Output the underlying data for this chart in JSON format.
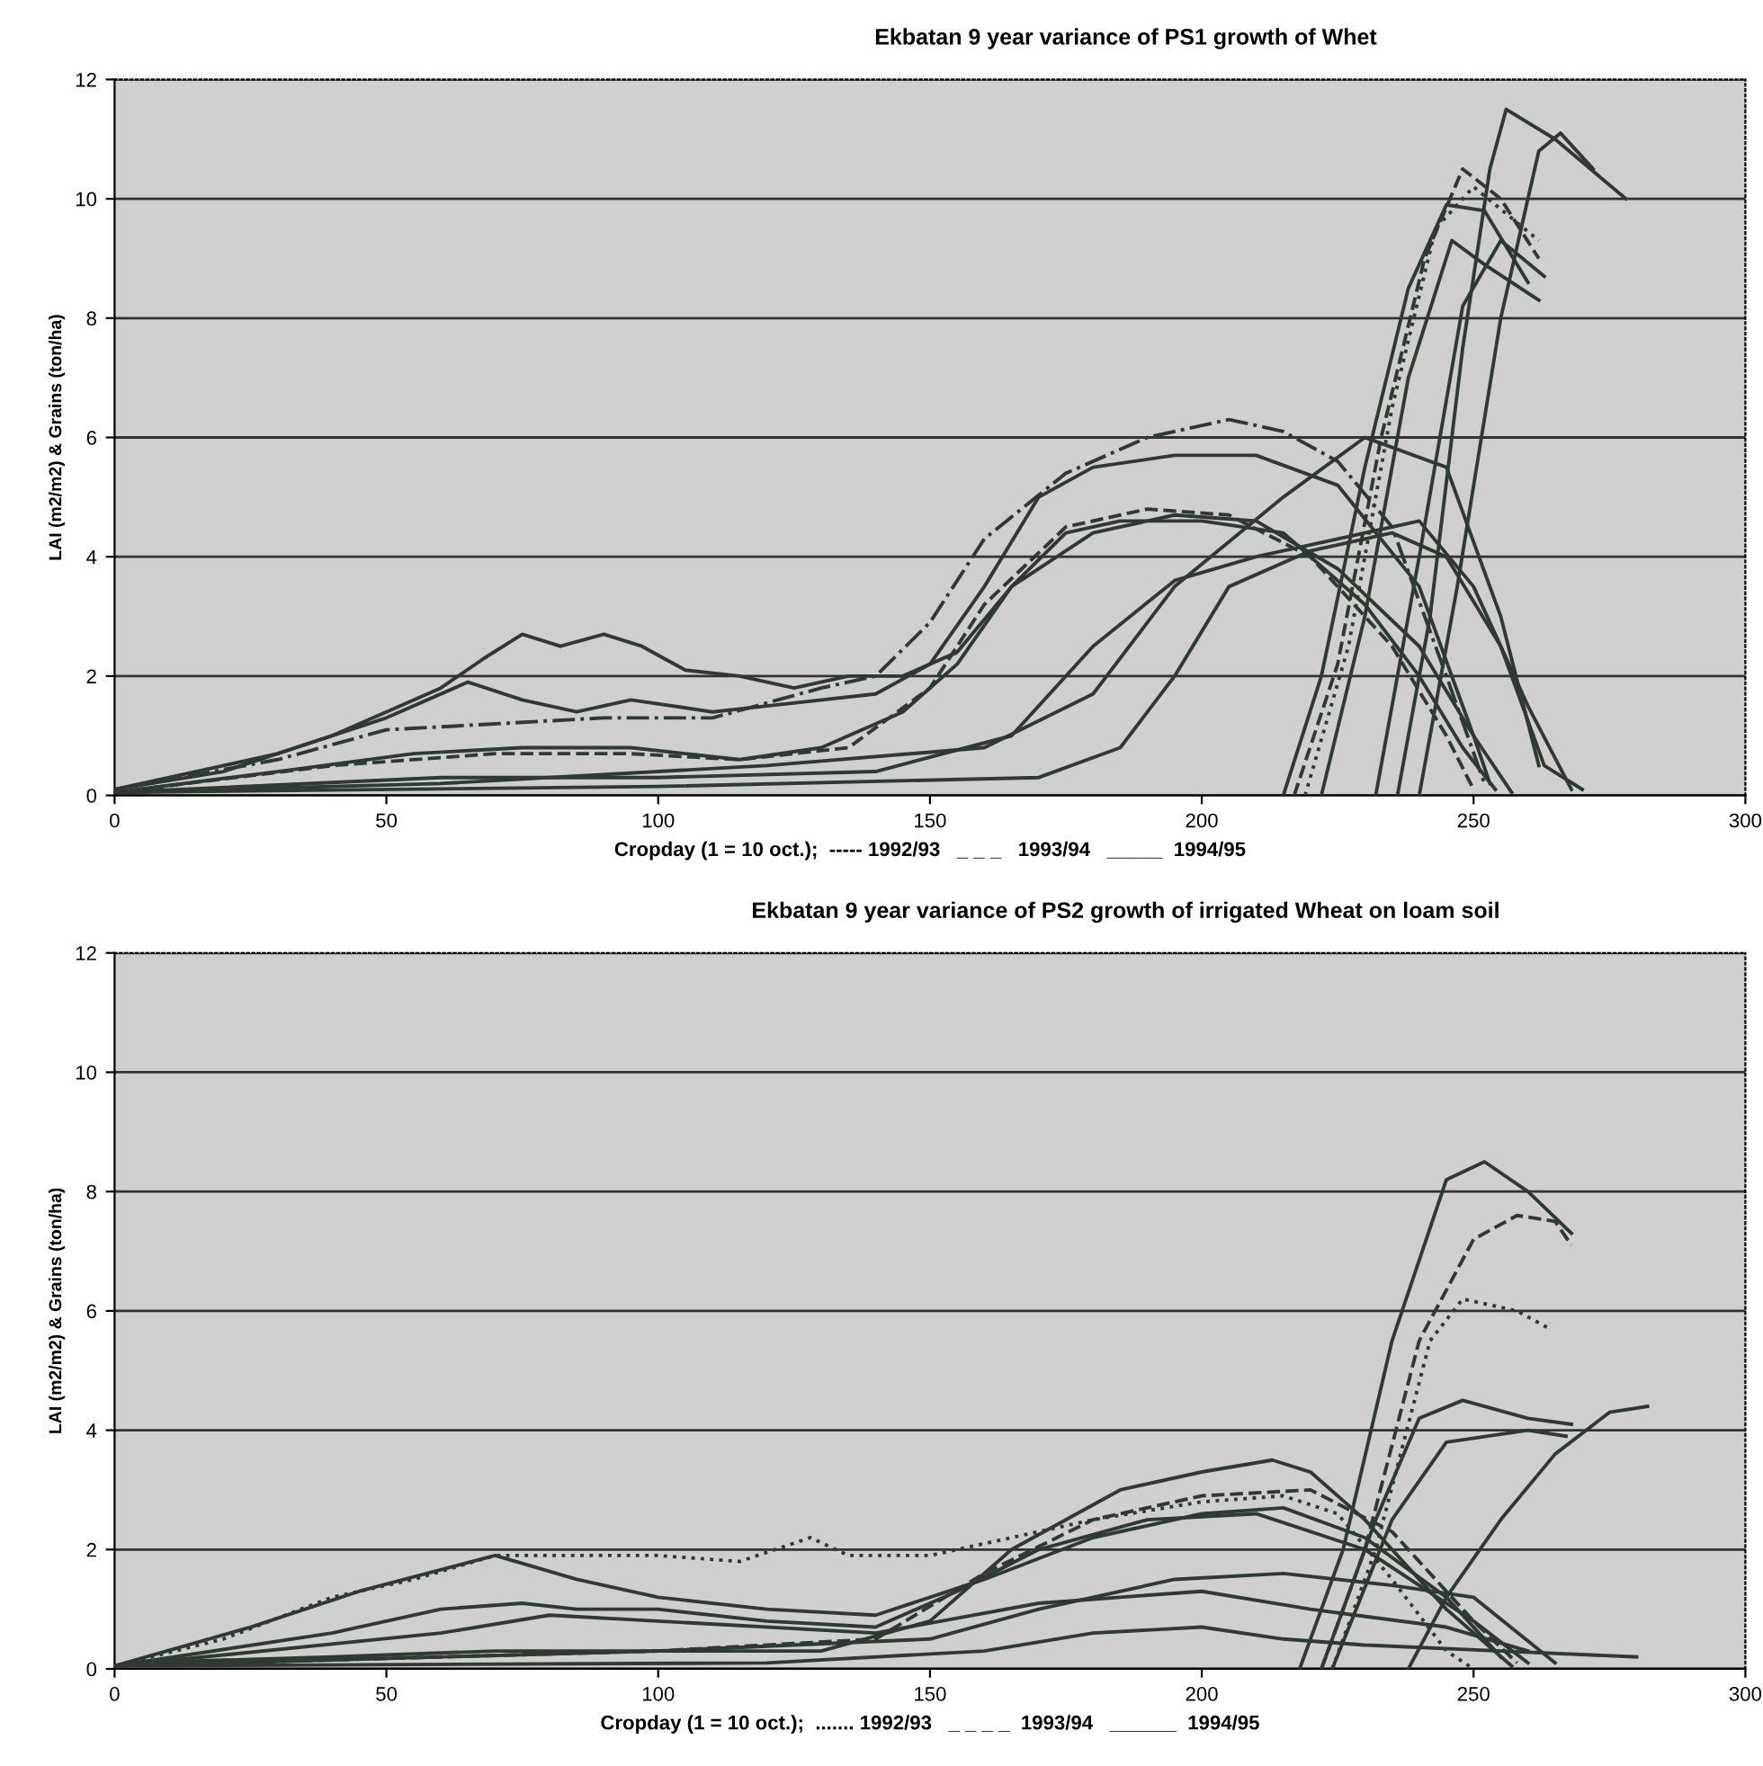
{
  "chart_data": [
    {
      "type": "line",
      "title": "Ekbatan 9 year variance of PS1 growth of Whet",
      "xlabel": "Cropday (1 = 10 oct.);  ----- 1992/93   _ _ _   1993/94   _____  1994/95",
      "ylabel": "LAI (m2/m2) & Grains (ton/ha)",
      "xlim": [
        0,
        300
      ],
      "xticks": [
        0,
        50,
        100,
        150,
        200,
        250,
        300
      ],
      "ylim": [
        0,
        12
      ],
      "yticks": [
        0,
        2,
        4,
        6,
        8,
        10,
        12
      ],
      "grid": "y",
      "marker": "none",
      "series": [
        {
          "color": "#2f3a33",
          "line_style": "solid",
          "x": [
            0,
            20,
            40,
            60,
            68,
            75,
            82,
            90,
            97,
            105,
            115,
            125,
            135,
            145,
            155,
            165,
            175,
            185,
            200,
            215,
            230,
            240,
            248,
            254
          ],
          "values": [
            0.1,
            0.4,
            1.0,
            1.8,
            2.3,
            2.7,
            2.5,
            2.7,
            2.5,
            2.1,
            2.0,
            1.8,
            2.0,
            2.0,
            2.4,
            3.5,
            4.4,
            4.6,
            4.6,
            4.4,
            3.2,
            2.0,
            0.8,
            0.1
          ]
        },
        {
          "color": "#2f3a33",
          "line_style": "solid",
          "x": [
            0,
            30,
            50,
            65,
            75,
            85,
            95,
            110,
            120,
            140,
            150,
            160,
            170,
            180,
            195,
            210,
            225,
            240,
            250,
            257
          ],
          "values": [
            0.1,
            0.7,
            1.3,
            1.9,
            1.6,
            1.4,
            1.6,
            1.4,
            1.5,
            1.7,
            2.2,
            3.5,
            5.0,
            5.5,
            5.7,
            5.7,
            5.2,
            3.5,
            1.0,
            0.05
          ]
        },
        {
          "color": "#2f3a33",
          "line_style": "dashdot",
          "x": [
            0,
            30,
            50,
            70,
            90,
            110,
            130,
            140,
            150,
            160,
            175,
            190,
            205,
            215,
            225,
            235,
            245,
            252
          ],
          "values": [
            0.1,
            0.6,
            1.1,
            1.2,
            1.3,
            1.3,
            1.8,
            2.0,
            2.9,
            4.3,
            5.4,
            6.0,
            6.3,
            6.1,
            5.6,
            4.5,
            2.0,
            0.2
          ]
        },
        {
          "color": "#2f3a33",
          "line_style": "solid",
          "x": [
            0,
            30,
            55,
            75,
            95,
            115,
            130,
            145,
            155,
            165,
            180,
            195,
            210,
            225,
            240,
            250,
            253
          ],
          "values": [
            0.05,
            0.4,
            0.7,
            0.8,
            0.8,
            0.6,
            0.8,
            1.4,
            2.2,
            3.5,
            4.4,
            4.7,
            4.6,
            3.8,
            2.5,
            1.0,
            0.2
          ]
        },
        {
          "color": "#2f3a33",
          "line_style": "dashed",
          "x": [
            0,
            40,
            70,
            95,
            115,
            135,
            150,
            160,
            175,
            190,
            205,
            220,
            235,
            245,
            250
          ],
          "values": [
            0.05,
            0.5,
            0.7,
            0.7,
            0.6,
            0.8,
            1.8,
            3.2,
            4.5,
            4.8,
            4.7,
            4.0,
            2.5,
            1.0,
            0.1
          ]
        },
        {
          "color": "#2f3a33",
          "line_style": "solid",
          "x": [
            0,
            60,
            100,
            140,
            165,
            180,
            195,
            210,
            225,
            240,
            250,
            260,
            268
          ],
          "values": [
            0.05,
            0.3,
            0.3,
            0.4,
            1.0,
            2.5,
            3.6,
            4.0,
            4.3,
            4.6,
            3.5,
            1.5,
            0.1
          ]
        },
        {
          "color": "#2f3a33",
          "line_style": "solid",
          "x": [
            0,
            100,
            170,
            185,
            195,
            205,
            220,
            235,
            245,
            255,
            263,
            270
          ],
          "values": [
            0.05,
            0.15,
            0.3,
            0.8,
            2.0,
            3.5,
            4.1,
            4.4,
            4.0,
            2.5,
            0.5,
            0.1
          ]
        },
        {
          "color": "#2f3a33",
          "line_style": "solid",
          "x": [
            0,
            60,
            120,
            160,
            180,
            195,
            215,
            230,
            245,
            255,
            262
          ],
          "values": [
            0.05,
            0.2,
            0.5,
            0.8,
            1.7,
            3.5,
            5.0,
            6.0,
            5.5,
            3.0,
            0.5
          ]
        },
        {
          "color": "#2f3a33",
          "line_style": "solid",
          "x": [
            215,
            222,
            230,
            238,
            245,
            252,
            260
          ],
          "values": [
            0,
            2,
            5.5,
            8.5,
            9.9,
            9.8,
            8.6
          ]
        },
        {
          "color": "#2f3a33",
          "line_style": "dashed",
          "x": [
            217,
            225,
            233,
            241,
            248,
            255,
            262
          ],
          "values": [
            0,
            2.2,
            6,
            9,
            10.5,
            10,
            9.0
          ]
        },
        {
          "color": "#2f3a33",
          "line_style": "dotted",
          "x": [
            219,
            227,
            235,
            243,
            250,
            262
          ],
          "values": [
            0,
            2.5,
            6.5,
            9.5,
            10.2,
            9.3
          ]
        },
        {
          "color": "#2f3a33",
          "line_style": "solid",
          "x": [
            222,
            230,
            238,
            246,
            252,
            262
          ],
          "values": [
            0,
            3,
            7,
            9.3,
            8.9,
            8.3
          ]
        },
        {
          "color": "#2f3a33",
          "line_style": "solid",
          "x": [
            236,
            242,
            248,
            253,
            256,
            265,
            278
          ],
          "values": [
            0,
            3,
            7.5,
            10.5,
            11.5,
            11.0,
            10.0
          ]
        },
        {
          "color": "#2f3a33",
          "line_style": "solid",
          "x": [
            240,
            247,
            255,
            262,
            266,
            272
          ],
          "values": [
            0,
            3.5,
            8,
            10.8,
            11.1,
            10.5
          ]
        },
        {
          "color": "#2f3a33",
          "line_style": "solid",
          "x": [
            232,
            240,
            248,
            255,
            263
          ],
          "values": [
            0,
            4,
            8.2,
            9.3,
            8.7
          ]
        }
      ]
    },
    {
      "type": "line",
      "title": "Ekbatan 9 year variance of PS2 growth of irrigated Wheat on loam soil",
      "xlabel": "Cropday (1 = 10 oct.);  ....... 1992/93   _ _ _ _  1993/94   ______  1994/95",
      "ylabel": "LAI (m2/m2) & Grains (ton/ha)",
      "xlim": [
        0,
        300
      ],
      "xticks": [
        0,
        50,
        100,
        150,
        200,
        250,
        300
      ],
      "ylim": [
        0,
        12
      ],
      "yticks": [
        0,
        2,
        4,
        6,
        8,
        10,
        12
      ],
      "grid": "y",
      "marker": "none",
      "series": [
        {
          "color": "#2f3a33",
          "line_style": "dotted",
          "x": [
            0,
            20,
            40,
            55,
            70,
            80,
            100,
            115,
            128,
            135,
            150,
            165,
            180,
            200,
            215,
            225,
            235,
            245,
            250
          ],
          "values": [
            0.05,
            0.5,
            1.2,
            1.5,
            1.9,
            1.9,
            1.9,
            1.8,
            2.2,
            1.9,
            1.9,
            2.2,
            2.5,
            2.8,
            2.9,
            2.6,
            1.5,
            0.3,
            0
          ]
        },
        {
          "color": "#2f3a33",
          "line_style": "solid",
          "x": [
            0,
            25,
            45,
            70,
            85,
            100,
            120,
            140,
            160,
            180,
            200,
            215,
            230,
            245,
            255
          ],
          "values": [
            0.05,
            0.7,
            1.3,
            1.9,
            1.5,
            1.2,
            1.0,
            0.9,
            1.5,
            2.2,
            2.6,
            2.7,
            2.2,
            1.2,
            0.2
          ]
        },
        {
          "color": "#2f3a33",
          "line_style": "solid",
          "x": [
            0,
            40,
            60,
            75,
            85,
            100,
            120,
            140,
            155,
            170,
            190,
            210,
            230,
            250,
            260
          ],
          "values": [
            0.05,
            0.6,
            1.0,
            1.1,
            1.0,
            1.0,
            0.8,
            0.7,
            1.3,
            2.0,
            2.5,
            2.6,
            2.0,
            0.8,
            0.1
          ]
        },
        {
          "color": "#2f3a33",
          "line_style": "solid",
          "x": [
            3,
            40,
            70,
            100,
            130,
            150,
            165,
            185,
            200,
            213,
            220,
            230,
            245,
            257
          ],
          "values": [
            0.1,
            0.2,
            0.3,
            0.3,
            0.3,
            0.8,
            2.0,
            3.0,
            3.3,
            3.5,
            3.3,
            2.5,
            1.0,
            0.05
          ]
        },
        {
          "color": "#2f3a33",
          "line_style": "dashed",
          "x": [
            0,
            60,
            100,
            140,
            160,
            180,
            200,
            220,
            235,
            250,
            258
          ],
          "values": [
            0.05,
            0.2,
            0.3,
            0.5,
            1.6,
            2.5,
            2.9,
            3.0,
            2.3,
            0.8,
            0.1
          ]
        },
        {
          "color": "#2f3a33",
          "line_style": "solid",
          "x": [
            0,
            100,
            150,
            170,
            195,
            215,
            235,
            250,
            265
          ],
          "values": [
            0.05,
            0.3,
            0.5,
            1.0,
            1.5,
            1.6,
            1.4,
            1.2,
            0.1
          ]
        },
        {
          "color": "#2f3a33",
          "line_style": "solid",
          "x": [
            0,
            120,
            160,
            180,
            200,
            215,
            230,
            255,
            280
          ],
          "values": [
            0.05,
            0.1,
            0.3,
            0.6,
            0.7,
            0.5,
            0.4,
            0.3,
            0.2
          ]
        },
        {
          "color": "#2f3a33",
          "line_style": "solid",
          "x": [
            0,
            60,
            80,
            100,
            140,
            170,
            200,
            220,
            245,
            260
          ],
          "values": [
            0.05,
            0.6,
            0.9,
            0.8,
            0.6,
            1.1,
            1.3,
            1.0,
            0.7,
            0.3
          ]
        },
        {
          "color": "#2f3a33",
          "line_style": "solid",
          "x": [
            218,
            226,
            235,
            245,
            252,
            260,
            268
          ],
          "values": [
            0,
            2,
            5.5,
            8.2,
            8.5,
            8.0,
            7.3
          ]
        },
        {
          "color": "#2f3a33",
          "line_style": "dashed",
          "x": [
            222,
            230,
            240,
            250,
            258,
            265,
            268
          ],
          "values": [
            0,
            2,
            5.5,
            7.2,
            7.6,
            7.5,
            7.1
          ]
        },
        {
          "color": "#2f3a33",
          "line_style": "dotted",
          "x": [
            224,
            232,
            242,
            248,
            258,
            264
          ],
          "values": [
            0,
            2,
            5.5,
            6.2,
            6.0,
            5.7
          ]
        },
        {
          "color": "#2f3a33",
          "line_style": "solid",
          "x": [
            222,
            232,
            240,
            248,
            260,
            268
          ],
          "values": [
            0,
            2.5,
            4.2,
            4.5,
            4.2,
            4.1
          ]
        },
        {
          "color": "#2f3a33",
          "line_style": "solid",
          "x": [
            224,
            235,
            245,
            260,
            267
          ],
          "values": [
            0,
            2.5,
            3.8,
            4.0,
            3.9
          ]
        },
        {
          "color": "#2f3a33",
          "line_style": "solid",
          "x": [
            238,
            245,
            255,
            265,
            275,
            282
          ],
          "values": [
            0,
            1.2,
            2.5,
            3.6,
            4.3,
            4.4
          ]
        }
      ]
    }
  ]
}
